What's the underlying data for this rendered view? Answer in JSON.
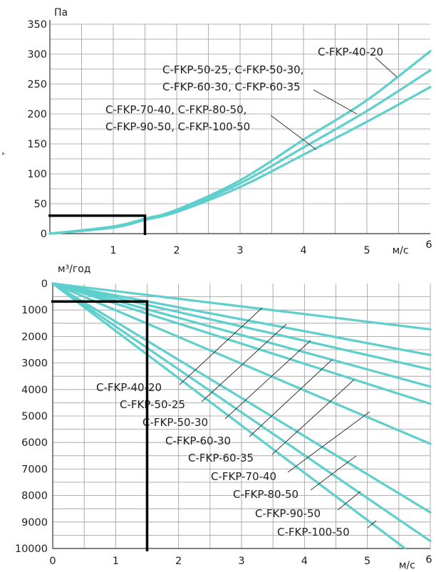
{
  "colors": {
    "series": "#5ecfcc",
    "grid": "#9a9a9a",
    "axis": "#333333",
    "text": "#1e1e1e",
    "marker": "#000000"
  },
  "chart_data": [
    {
      "type": "line",
      "title": "",
      "xlabel": "м/с",
      "ylabel": "Па",
      "xlim": [
        0,
        6
      ],
      "ylim": [
        0,
        350
      ],
      "x_ticks": [
        1,
        2,
        3,
        4,
        5,
        6
      ],
      "y_ticks": [
        0,
        50,
        100,
        150,
        200,
        250,
        300,
        350
      ],
      "grid": true,
      "stray_mark": "▸",
      "series": [
        {
          "name": "C-FKP-40-20",
          "x": [
            0,
            1,
            1.5,
            2,
            3,
            4,
            5,
            6
          ],
          "y": [
            0,
            12,
            25,
            40,
            89,
            157,
            223,
            305
          ]
        },
        {
          "name": "C-FKP-50-25, C-FKP-50-30, C-FKP-60-30, C-FKP-60-35",
          "x": [
            0,
            1,
            1.5,
            2,
            3,
            4,
            5,
            6
          ],
          "y": [
            0,
            11,
            24,
            38,
            84,
            144,
            205,
            273
          ]
        },
        {
          "name": "C-FKP-70-40, C-FKP-80-50, C-FKP-90-50, C-FKP-100-50",
          "x": [
            0,
            1,
            1.5,
            2,
            3,
            4,
            5,
            6
          ],
          "y": [
            0,
            10,
            23,
            36,
            78,
            132,
            187,
            245
          ]
        }
      ],
      "labels": [
        {
          "lines": [
            "C-FKP-40-20"
          ]
        },
        {
          "lines": [
            "C-FKP-50-25, C-FKP-50-30,",
            "C-FKP-60-30, C-FKP-60-35"
          ]
        },
        {
          "lines": [
            "C-FKP-70-40, C-FKP-80-50,",
            "C-FKP-90-50, C-FKP-100-50"
          ]
        }
      ],
      "marker": {
        "x": 1.5,
        "y": 30
      }
    },
    {
      "type": "line",
      "title": "",
      "xlabel": "м/с",
      "ylabel": "м³/год",
      "xlim": [
        0,
        6
      ],
      "ylim": [
        0,
        10000
      ],
      "y_inverted": true,
      "x_ticks": [
        0,
        1,
        2,
        3,
        4,
        5,
        6
      ],
      "y_ticks": [
        0,
        1000,
        2000,
        3000,
        4000,
        5000,
        6000,
        7000,
        8000,
        9000,
        10000
      ],
      "grid": true,
      "series": [
        {
          "name": "C-FKP-40-20",
          "x": [
            0,
            6
          ],
          "y": [
            0,
            1730
          ]
        },
        {
          "name": "C-FKP-50-25",
          "x": [
            0,
            6
          ],
          "y": [
            0,
            2700
          ]
        },
        {
          "name": "C-FKP-50-30",
          "x": [
            0,
            6
          ],
          "y": [
            0,
            3240
          ]
        },
        {
          "name": "C-FKP-60-30",
          "x": [
            0,
            6
          ],
          "y": [
            0,
            3890
          ]
        },
        {
          "name": "C-FKP-60-35",
          "x": [
            0,
            6
          ],
          "y": [
            0,
            4540
          ]
        },
        {
          "name": "C-FKP-70-40",
          "x": [
            0,
            6
          ],
          "y": [
            0,
            6050
          ]
        },
        {
          "name": "C-FKP-80-50",
          "x": [
            0,
            6
          ],
          "y": [
            0,
            8640
          ]
        },
        {
          "name": "C-FKP-90-50",
          "x": [
            0,
            6
          ],
          "y": [
            0,
            9720
          ]
        },
        {
          "name": "C-FKP-100-50",
          "x": [
            0,
            5.6
          ],
          "y": [
            0,
            10000
          ]
        }
      ],
      "marker": {
        "x": 1.5,
        "y": 680
      }
    }
  ]
}
